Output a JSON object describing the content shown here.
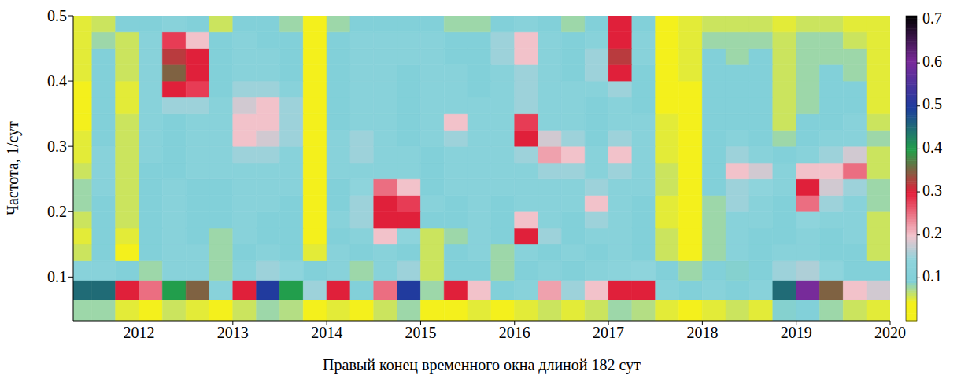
{
  "chart_data": {
    "type": "heatmap",
    "xlabel": "Правый конец временного окна длиной 182 сут",
    "ylabel": "Частота, 1/сут",
    "xlim": [
      2011.3,
      2020
    ],
    "xticks": [
      2012,
      2013,
      2014,
      2015,
      2016,
      2017,
      2018,
      2019,
      2020
    ],
    "ylim": [
      0.033,
      0.5
    ],
    "yticks": [
      0.1,
      0.2,
      0.3,
      0.4,
      0.5
    ],
    "x_edges": [
      2011.3,
      2011.5,
      2011.75,
      2012,
      2012.25,
      2012.5,
      2012.75,
      2013,
      2013.25,
      2013.5,
      2013.75,
      2014,
      2014.25,
      2014.5,
      2014.75,
      2015,
      2015.25,
      2015.5,
      2015.75,
      2016,
      2016.25,
      2016.5,
      2016.75,
      2017,
      2017.25,
      2017.5,
      2017.75,
      2018,
      2018.25,
      2018.5,
      2018.75,
      2019,
      2019.25,
      2019.5,
      2019.75,
      2020
    ],
    "y_edges": [
      0.033,
      0.065,
      0.095,
      0.125,
      0.15,
      0.175,
      0.2,
      0.225,
      0.25,
      0.275,
      0.3,
      0.325,
      0.35,
      0.375,
      0.4,
      0.425,
      0.45,
      0.475,
      0.5
    ],
    "cells": [
      [
        0.08,
        0.08,
        0.05,
        0.04,
        0.06,
        0.05,
        0.04,
        0.06,
        0.08,
        0.07,
        0.04,
        0.05,
        0.04,
        0.06,
        0.08,
        0.03,
        0.04,
        0.05,
        0.04,
        0.05,
        0.06,
        0.05,
        0.06,
        0.08,
        0.07,
        0.05,
        0.04,
        0.05,
        0.06,
        0.05,
        0.09,
        0.1,
        0.08,
        0.06,
        0.05
      ],
      [
        0.45,
        0.45,
        0.3,
        0.25,
        0.4,
        0.35,
        0.12,
        0.3,
        0.5,
        0.4,
        0.15,
        0.3,
        0.1,
        0.25,
        0.5,
        0.08,
        0.3,
        0.2,
        0.1,
        0.12,
        0.22,
        0.15,
        0.2,
        0.3,
        0.3,
        0.12,
        0.1,
        0.12,
        0.1,
        0.12,
        0.45,
        0.6,
        0.35,
        0.2,
        0.18
      ],
      [
        0.12,
        0.12,
        0.1,
        0.08,
        0.12,
        0.12,
        0.08,
        0.12,
        0.15,
        0.14,
        0.1,
        0.12,
        0.08,
        0.12,
        0.15,
        0.06,
        0.1,
        0.1,
        0.08,
        0.1,
        0.12,
        0.1,
        0.12,
        0.13,
        0.14,
        0.1,
        0.08,
        0.1,
        0.09,
        0.1,
        0.15,
        0.16,
        0.14,
        0.1,
        0.1
      ],
      [
        0.06,
        0.1,
        0.04,
        0.1,
        0.12,
        0.12,
        0.08,
        0.1,
        0.12,
        0.1,
        0.05,
        0.12,
        0.1,
        0.12,
        0.1,
        0.06,
        0.1,
        0.12,
        0.08,
        0.12,
        0.1,
        0.12,
        0.1,
        0.12,
        0.1,
        0.06,
        0.04,
        0.08,
        0.12,
        0.1,
        0.12,
        0.12,
        0.1,
        0.1,
        0.06
      ],
      [
        0.05,
        0.1,
        0.05,
        0.1,
        0.12,
        0.1,
        0.08,
        0.12,
        0.1,
        0.1,
        0.04,
        0.1,
        0.12,
        0.2,
        0.14,
        0.06,
        0.08,
        0.12,
        0.1,
        0.3,
        0.15,
        0.1,
        0.12,
        0.12,
        0.1,
        0.06,
        0.03,
        0.08,
        0.12,
        0.1,
        0.1,
        0.12,
        0.1,
        0.12,
        0.06
      ],
      [
        0.06,
        0.1,
        0.06,
        0.1,
        0.12,
        0.1,
        0.1,
        0.12,
        0.1,
        0.1,
        0.04,
        0.12,
        0.15,
        0.3,
        0.3,
        0.1,
        0.1,
        0.12,
        0.1,
        0.2,
        0.12,
        0.1,
        0.15,
        0.12,
        0.1,
        0.05,
        0.03,
        0.08,
        0.12,
        0.12,
        0.1,
        0.14,
        0.12,
        0.12,
        0.06
      ],
      [
        0.08,
        0.1,
        0.06,
        0.1,
        0.12,
        0.1,
        0.1,
        0.12,
        0.12,
        0.1,
        0.03,
        0.1,
        0.15,
        0.3,
        0.28,
        0.12,
        0.1,
        0.12,
        0.1,
        0.12,
        0.12,
        0.12,
        0.2,
        0.12,
        0.1,
        0.05,
        0.03,
        0.08,
        0.15,
        0.12,
        0.1,
        0.25,
        0.15,
        0.12,
        0.08
      ],
      [
        0.08,
        0.12,
        0.06,
        0.1,
        0.12,
        0.1,
        0.1,
        0.12,
        0.12,
        0.12,
        0.03,
        0.1,
        0.14,
        0.25,
        0.2,
        0.1,
        0.12,
        0.12,
        0.12,
        0.12,
        0.12,
        0.12,
        0.15,
        0.12,
        0.12,
        0.06,
        0.04,
        0.1,
        0.15,
        0.14,
        0.12,
        0.3,
        0.18,
        0.15,
        0.08
      ],
      [
        0.06,
        0.12,
        0.06,
        0.1,
        0.1,
        0.12,
        0.12,
        0.12,
        0.12,
        0.12,
        0.03,
        0.12,
        0.12,
        0.12,
        0.12,
        0.1,
        0.12,
        0.12,
        0.12,
        0.12,
        0.15,
        0.15,
        0.12,
        0.15,
        0.12,
        0.06,
        0.04,
        0.1,
        0.2,
        0.18,
        0.12,
        0.2,
        0.2,
        0.25,
        0.06
      ],
      [
        0.05,
        0.12,
        0.06,
        0.12,
        0.1,
        0.12,
        0.12,
        0.15,
        0.15,
        0.12,
        0.03,
        0.12,
        0.15,
        0.12,
        0.12,
        0.1,
        0.12,
        0.12,
        0.12,
        0.15,
        0.22,
        0.2,
        0.12,
        0.2,
        0.12,
        0.05,
        0.04,
        0.1,
        0.15,
        0.12,
        0.1,
        0.12,
        0.15,
        0.18,
        0.06
      ],
      [
        0.05,
        0.1,
        0.06,
        0.12,
        0.1,
        0.12,
        0.12,
        0.2,
        0.18,
        0.15,
        0.03,
        0.12,
        0.15,
        0.12,
        0.1,
        0.12,
        0.15,
        0.12,
        0.12,
        0.3,
        0.18,
        0.15,
        0.1,
        0.15,
        0.12,
        0.05,
        0.04,
        0.1,
        0.12,
        0.1,
        0.08,
        0.1,
        0.12,
        0.12,
        0.08
      ],
      [
        0.04,
        0.1,
        0.06,
        0.12,
        0.1,
        0.12,
        0.12,
        0.2,
        0.2,
        0.15,
        0.03,
        0.1,
        0.12,
        0.12,
        0.1,
        0.12,
        0.2,
        0.12,
        0.12,
        0.28,
        0.12,
        0.12,
        0.1,
        0.12,
        0.12,
        0.05,
        0.04,
        0.1,
        0.1,
        0.1,
        0.06,
        0.1,
        0.1,
        0.12,
        0.06
      ],
      [
        0.04,
        0.1,
        0.05,
        0.12,
        0.15,
        0.15,
        0.12,
        0.18,
        0.2,
        0.15,
        0.03,
        0.1,
        0.12,
        0.12,
        0.1,
        0.12,
        0.12,
        0.12,
        0.12,
        0.15,
        0.12,
        0.12,
        0.1,
        0.12,
        0.1,
        0.04,
        0.04,
        0.1,
        0.1,
        0.1,
        0.06,
        0.08,
        0.1,
        0.1,
        0.05
      ],
      [
        0.04,
        0.1,
        0.05,
        0.12,
        0.3,
        0.28,
        0.1,
        0.15,
        0.15,
        0.12,
        0.03,
        0.1,
        0.12,
        0.12,
        0.1,
        0.12,
        0.12,
        0.1,
        0.12,
        0.15,
        0.12,
        0.12,
        0.12,
        0.15,
        0.1,
        0.04,
        0.04,
        0.1,
        0.1,
        0.1,
        0.06,
        0.08,
        0.1,
        0.1,
        0.05
      ],
      [
        0.05,
        0.1,
        0.06,
        0.12,
        0.35,
        0.3,
        0.1,
        0.12,
        0.12,
        0.1,
        0.03,
        0.1,
        0.12,
        0.12,
        0.1,
        0.12,
        0.12,
        0.1,
        0.12,
        0.15,
        0.12,
        0.1,
        0.15,
        0.3,
        0.1,
        0.04,
        0.05,
        0.1,
        0.1,
        0.1,
        0.06,
        0.08,
        0.1,
        0.08,
        0.05
      ],
      [
        0.05,
        0.1,
        0.06,
        0.12,
        0.32,
        0.3,
        0.1,
        0.12,
        0.12,
        0.1,
        0.03,
        0.1,
        0.12,
        0.12,
        0.12,
        0.12,
        0.1,
        0.1,
        0.15,
        0.2,
        0.12,
        0.1,
        0.15,
        0.32,
        0.12,
        0.04,
        0.05,
        0.1,
        0.08,
        0.1,
        0.06,
        0.08,
        0.08,
        0.08,
        0.05
      ],
      [
        0.05,
        0.08,
        0.06,
        0.12,
        0.28,
        0.2,
        0.1,
        0.12,
        0.1,
        0.1,
        0.03,
        0.1,
        0.12,
        0.12,
        0.12,
        0.12,
        0.1,
        0.1,
        0.15,
        0.2,
        0.12,
        0.1,
        0.12,
        0.3,
        0.12,
        0.04,
        0.05,
        0.08,
        0.08,
        0.08,
        0.06,
        0.08,
        0.08,
        0.06,
        0.05
      ],
      [
        0.05,
        0.06,
        0.1,
        0.1,
        0.12,
        0.1,
        0.06,
        0.1,
        0.1,
        0.08,
        0.03,
        0.08,
        0.1,
        0.1,
        0.1,
        0.1,
        0.08,
        0.08,
        0.1,
        0.12,
        0.1,
        0.08,
        0.1,
        0.3,
        0.1,
        0.04,
        0.05,
        0.06,
        0.06,
        0.06,
        0.05,
        0.06,
        0.06,
        0.05,
        0.05
      ]
    ],
    "colorbar": {
      "range": [
        0,
        0.71
      ],
      "ticks": [
        0.1,
        0.2,
        0.3,
        0.4,
        0.5,
        0.6,
        0.7
      ]
    }
  }
}
